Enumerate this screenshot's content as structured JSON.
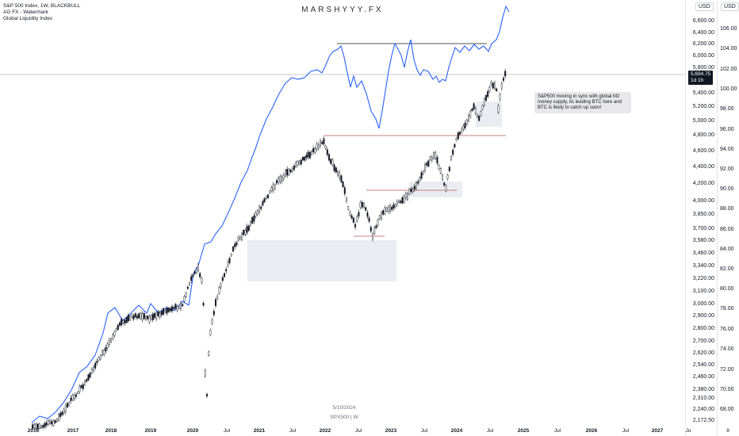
{
  "legend": {
    "symbol": "S&P 500 Index, 1W, BLACKBULL",
    "indicator_1": "AG FX - Watermark",
    "indicator_2": "Global Liquidity Index"
  },
  "watermark": "MARSHYYY.FX",
  "annotation": "S&P500 moving in sync with global M2 money supply, its leading BTC here and BTC is likely to catch up soon!",
  "footer": {
    "date": "5/10/2024",
    "symbol": "SPX500 | W"
  },
  "axis": {
    "left_currency": "USD",
    "right_currency": "USD",
    "current_price": "5,694.75",
    "countdown": "1d 1h",
    "left_ticks": [
      "6,600.00",
      "6,400.00",
      "6,200.00",
      "6,000.00",
      "5,800.00",
      "5,400.00",
      "5,200.00",
      "5,000.00",
      "4,800.00",
      "4,600.00",
      "4,400.00",
      "4,200.00",
      "4,000.00",
      "3,850.00",
      "3,700.00",
      "3,580.00",
      "3,460.00",
      "3,340.00",
      "3,220.00",
      "3,100.00",
      "3,000.00",
      "2,900.00",
      "2,800.00",
      "2,700.00",
      "2,620.00",
      "2,540.00",
      "2,460.00",
      "2,380.00",
      "2,310.00",
      "2,240.00",
      "2,172.50"
    ],
    "right_ticks": [
      "106.00",
      "104.00",
      "102.00",
      "100.00",
      "98.00",
      "96.00",
      "94.00",
      "92.00",
      "90.00",
      "88.00",
      "86.00",
      "84.00",
      "82.00",
      "80.00",
      "78.00",
      "76.00",
      "74.00",
      "72.00",
      "70.00",
      "68.00"
    ],
    "time_labels": [
      "2016",
      "2017",
      "2018",
      "2019",
      "2020",
      "Jul",
      "2021",
      "Jul",
      "2022",
      "Jul",
      "2023",
      "Jul",
      "2024",
      "Jul",
      "2025",
      "Jul",
      "2026",
      "Jul",
      "2027",
      "Ju",
      "8"
    ]
  },
  "colors": {
    "candle": "#131722",
    "liquidity_line": "#2962ff",
    "resistance_line": "#7b2e3a",
    "zone_fill": "#e6e7ee",
    "annotation_bg": "#e8e8ea"
  }
}
